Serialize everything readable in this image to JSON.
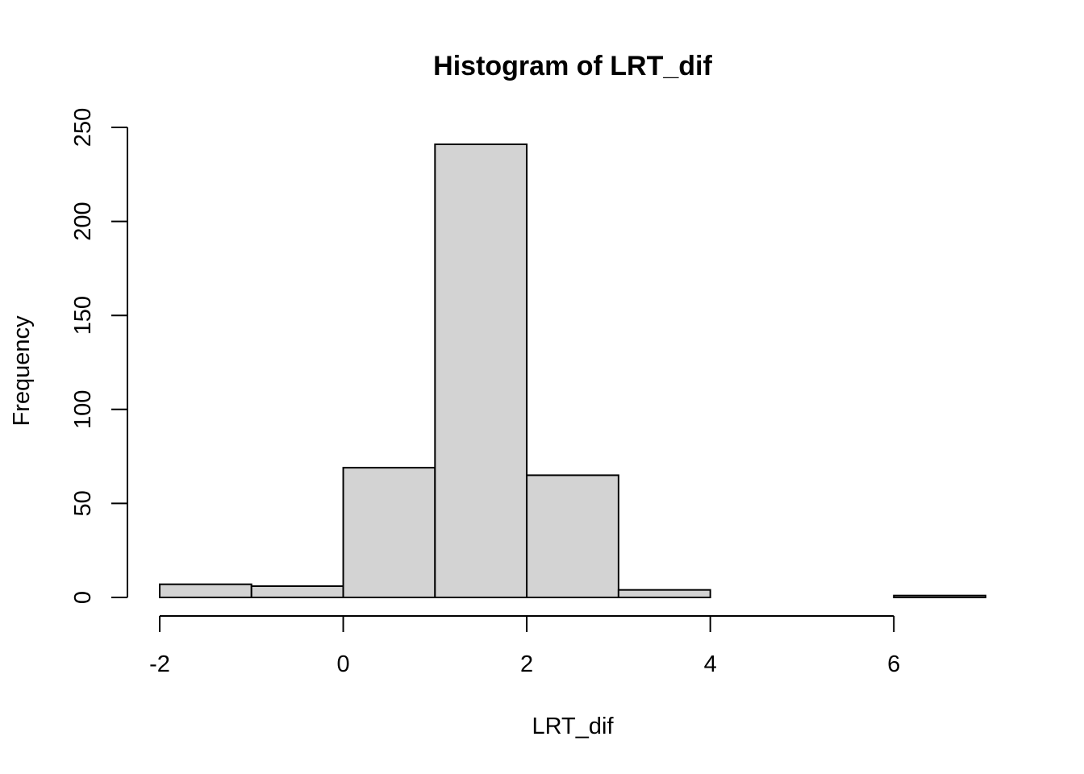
{
  "chart_data": {
    "type": "bar",
    "title": "Histogram of LRT_dif",
    "xlabel": "LRT_dif",
    "ylabel": "Frequency",
    "bin_edges": [
      -2,
      -1,
      0,
      1,
      2,
      3,
      4,
      5,
      6,
      7
    ],
    "values": [
      7,
      6,
      69,
      241,
      65,
      4,
      0,
      0,
      1
    ],
    "xlim": [
      -2,
      7
    ],
    "ylim": [
      0,
      250
    ],
    "x_ticks": [
      -2,
      0,
      2,
      4,
      6
    ],
    "y_ticks": [
      0,
      50,
      100,
      150,
      200,
      250
    ],
    "bar_color": "#d3d3d3",
    "grid": false,
    "legend": "none"
  }
}
